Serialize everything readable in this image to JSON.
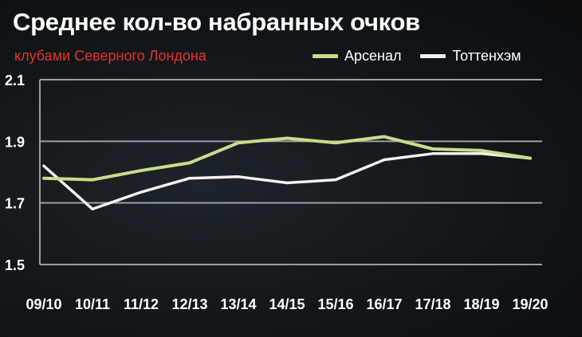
{
  "header": {
    "title": "Среднее кол-во набранных очков",
    "subtitle": "клубами Северного Лондона"
  },
  "colors": {
    "subtitle": "#e5322d",
    "arsenal": "#c9dc8d",
    "tottenham": "#f2f2f2",
    "grid": "#9aa0a6"
  },
  "chart_data": {
    "type": "line",
    "title": "Среднее кол-во набранных очков",
    "subtitle": "клубами Северного Лондона",
    "categories": [
      "09/10",
      "10/11",
      "11/12",
      "12/13",
      "13/14",
      "14/15",
      "15/16",
      "16/17",
      "17/18",
      "18/19",
      "19/20"
    ],
    "series": [
      {
        "name": "Арсенал",
        "color": "#c9dc8d",
        "values": [
          1.78,
          1.775,
          1.805,
          1.83,
          1.895,
          1.91,
          1.895,
          1.915,
          1.875,
          1.87,
          1.845
        ]
      },
      {
        "name": "Тоттенхэм",
        "color": "#f2f2f2",
        "values": [
          1.82,
          1.68,
          1.735,
          1.78,
          1.785,
          1.765,
          1.775,
          1.84,
          1.86,
          1.86,
          1.845
        ]
      }
    ],
    "y_ticks": [
      "1.5",
      "1.7",
      "1.9",
      "2.1"
    ],
    "ylim": [
      1.5,
      2.1
    ],
    "grid": true,
    "legend_position": "top-right"
  }
}
